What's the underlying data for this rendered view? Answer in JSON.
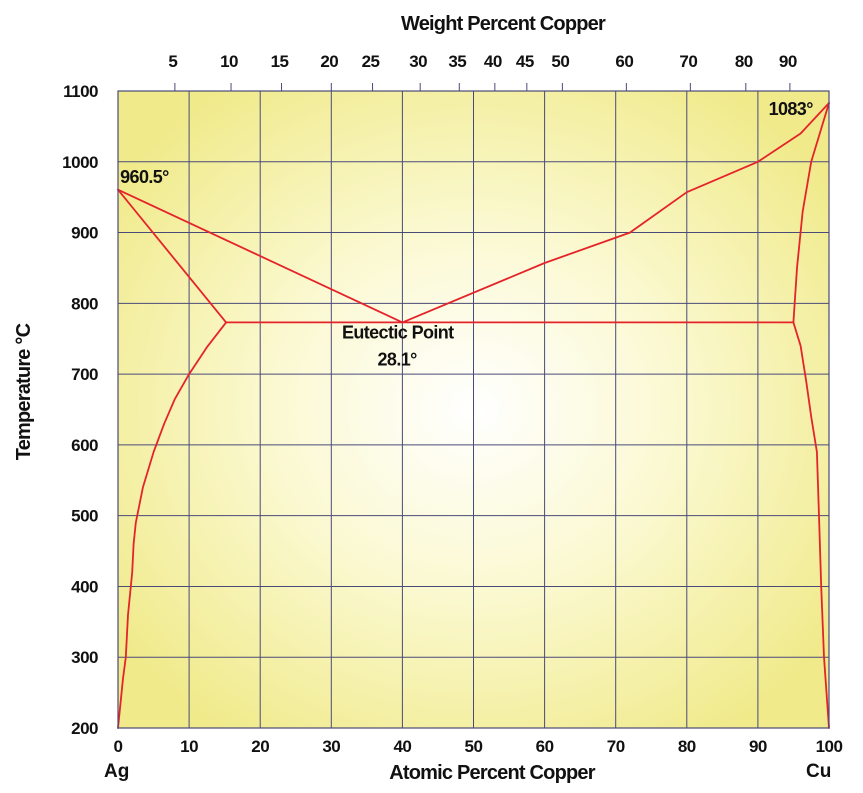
{
  "chart_data": {
    "type": "line",
    "title": "",
    "xlabel": "Atomic Percent Copper",
    "x2label": "Weight Percent Copper",
    "ylabel": "Temperature °C",
    "xlim": [
      0,
      100
    ],
    "ylim": [
      200,
      1100
    ],
    "grid": true,
    "x_ticks": [
      0,
      10,
      20,
      30,
      40,
      50,
      60,
      70,
      80,
      90,
      100
    ],
    "y_ticks": [
      200,
      300,
      400,
      500,
      600,
      700,
      800,
      900,
      1000,
      1100
    ],
    "top_ticks": [
      {
        "label": "5",
        "atomic": 8.0
      },
      {
        "label": "10",
        "atomic": 15.9
      },
      {
        "label": "15",
        "atomic": 23.0
      },
      {
        "label": "20",
        "atomic": 30.0
      },
      {
        "label": "25",
        "atomic": 35.8
      },
      {
        "label": "30",
        "atomic": 42.5
      },
      {
        "label": "35",
        "atomic": 48.0
      },
      {
        "label": "40",
        "atomic": 53.0
      },
      {
        "label": "45",
        "atomic": 57.5
      },
      {
        "label": "50",
        "atomic": 62.5
      },
      {
        "label": "60",
        "atomic": 71.5
      },
      {
        "label": "70",
        "atomic": 80.5
      },
      {
        "label": "80",
        "atomic": 88.3
      },
      {
        "label": "90",
        "atomic": 94.5
      }
    ],
    "end_labels": {
      "left": "Ag",
      "right": "Cu"
    },
    "series": [
      {
        "id": "liquidus-ag",
        "color": "#e5232a",
        "points": [
          [
            0,
            960.5
          ],
          [
            40,
            773
          ]
        ]
      },
      {
        "id": "liquidus-cu",
        "color": "#e5232a",
        "points": [
          [
            40,
            773
          ],
          [
            60,
            857
          ],
          [
            72,
            900
          ],
          [
            80,
            957
          ],
          [
            90,
            1000
          ],
          [
            96,
            1040
          ],
          [
            100,
            1083
          ]
        ]
      },
      {
        "id": "eutectic-line",
        "color": "#e5232a",
        "points": [
          [
            15.2,
            773
          ],
          [
            95,
            773
          ]
        ]
      },
      {
        "id": "ag-solidus",
        "color": "#e5232a",
        "points": [
          [
            0,
            960.5
          ],
          [
            15.2,
            773
          ]
        ]
      },
      {
        "id": "ag-solvus",
        "color": "#e5232a",
        "points": [
          [
            15.2,
            773
          ],
          [
            12.5,
            738
          ],
          [
            10,
            700
          ],
          [
            8,
            665
          ],
          [
            6.5,
            630
          ],
          [
            5,
            590
          ],
          [
            3.5,
            540
          ],
          [
            2.5,
            490
          ],
          [
            2.2,
            460
          ],
          [
            2,
            420
          ],
          [
            1.4,
            360
          ],
          [
            1.1,
            300
          ],
          [
            0.7,
            270
          ],
          [
            0,
            200
          ]
        ]
      },
      {
        "id": "cu-solidus",
        "color": "#e5232a",
        "points": [
          [
            95,
            773
          ],
          [
            95.5,
            850
          ],
          [
            96.3,
            930
          ],
          [
            97.5,
            1000
          ],
          [
            100,
            1083
          ]
        ]
      },
      {
        "id": "cu-solvus",
        "color": "#e5232a",
        "points": [
          [
            95,
            773
          ],
          [
            96,
            740
          ],
          [
            96.8,
            690
          ],
          [
            97.5,
            640
          ],
          [
            98.3,
            590
          ],
          [
            98.6,
            500
          ],
          [
            98.9,
            400
          ],
          [
            99.3,
            300
          ],
          [
            100,
            200
          ]
        ]
      }
    ],
    "annotations": [
      {
        "id": "ag-melting-point",
        "text": "960.5°",
        "x": 0.3,
        "y": 970
      },
      {
        "id": "cu-melting-point",
        "text": "1083°",
        "x": 91.5,
        "y": 1066
      },
      {
        "id": "eutectic-title",
        "text": "Eutectic Point",
        "x": 31.5,
        "y": 750
      },
      {
        "id": "eutectic-value",
        "text": "28.1°",
        "x": 36.5,
        "y": 712
      }
    ]
  }
}
